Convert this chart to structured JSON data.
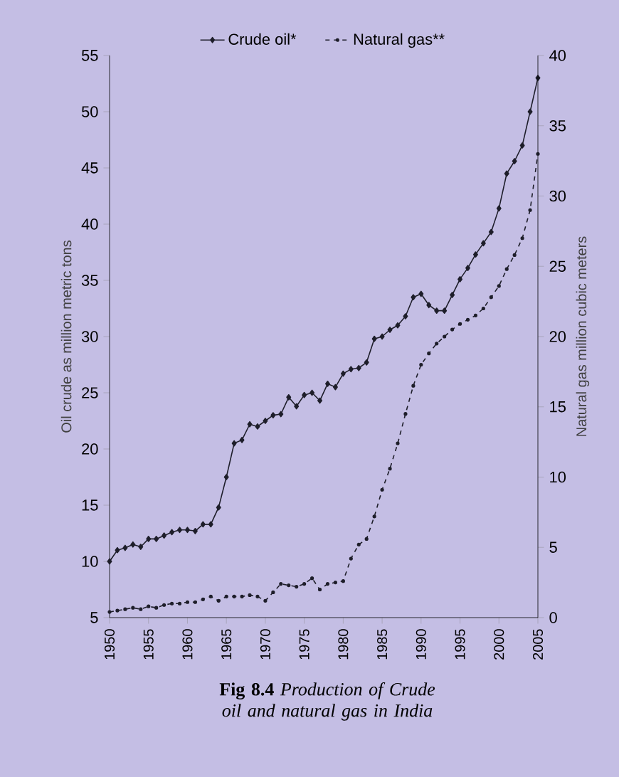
{
  "chart_data": {
    "type": "line",
    "title": "**Fig 8.4** *Production of Crude oil and natural gas in India*",
    "ylabel": "Oil crude as million metric tons",
    "y2label": "Natural gas million cubic meters",
    "x": [
      1950,
      1951,
      1952,
      1953,
      1954,
      1955,
      1956,
      1957,
      1958,
      1959,
      1960,
      1961,
      1962,
      1963,
      1964,
      1965,
      1966,
      1967,
      1968,
      1969,
      1970,
      1971,
      1972,
      1973,
      1974,
      1975,
      1976,
      1977,
      1978,
      1979,
      1980,
      1981,
      1982,
      1983,
      1984,
      1985,
      1986,
      1987,
      1988,
      1989,
      1990,
      1991,
      1992,
      1993,
      1994,
      1995,
      1996,
      1997,
      1998,
      1999,
      2000,
      2001,
      2002,
      2003,
      2004,
      2005
    ],
    "series": [
      {
        "name": "Crude oil*",
        "color": "#1e1e2a",
        "marker": "diamond",
        "line_style": "solid",
        "values": [
          10.0,
          11.0,
          11.2,
          11.5,
          11.3,
          12.0,
          12.0,
          12.3,
          12.6,
          12.8,
          12.8,
          12.7,
          13.3,
          13.3,
          14.8,
          17.5,
          20.5,
          20.8,
          22.2,
          22.0,
          22.5,
          23.0,
          23.1,
          24.6,
          23.8,
          24.8,
          25.0,
          24.3,
          25.8,
          25.5,
          26.7,
          27.1,
          27.2,
          27.7,
          29.8,
          30.0,
          30.6,
          31.0,
          31.8,
          33.5,
          33.8,
          32.8,
          32.3,
          32.3,
          33.7,
          35.1,
          36.1,
          37.3,
          38.3,
          39.3,
          41.4,
          44.5,
          45.6,
          47.0,
          50.0,
          53.0
        ]
      },
      {
        "name": "Natural gas**",
        "color": "#1e1e2a",
        "marker": "circle",
        "line_style": "dashed",
        "axis": "y2",
        "values": [
          0.4,
          0.5,
          0.6,
          0.7,
          0.6,
          0.8,
          0.7,
          0.9,
          1.0,
          1.0,
          1.1,
          1.1,
          1.3,
          1.5,
          1.2,
          1.5,
          1.5,
          1.5,
          1.6,
          1.5,
          1.2,
          1.8,
          2.4,
          2.3,
          2.2,
          2.4,
          2.8,
          2.0,
          2.4,
          2.5,
          2.6,
          4.2,
          5.2,
          5.6,
          7.2,
          9.1,
          10.6,
          12.4,
          14.5,
          16.5,
          18.0,
          18.8,
          19.5,
          20.0,
          20.5,
          20.9,
          21.2,
          21.5,
          22.0,
          22.8,
          23.6,
          24.8,
          25.8,
          27.0,
          29.0,
          33.0
        ]
      }
    ],
    "xlim": [
      1950,
      2005
    ],
    "xticks": [
      1950,
      1955,
      1960,
      1965,
      1970,
      1975,
      1980,
      1985,
      1990,
      1995,
      2000,
      2005
    ],
    "ylim": [
      5,
      55
    ],
    "yticks": [
      5,
      10,
      15,
      20,
      25,
      30,
      35,
      40,
      45,
      50,
      55
    ],
    "y2lim": [
      0,
      40
    ],
    "y2ticks": [
      0,
      5,
      10,
      15,
      20,
      25,
      30,
      35,
      40
    ],
    "legend": "top"
  }
}
